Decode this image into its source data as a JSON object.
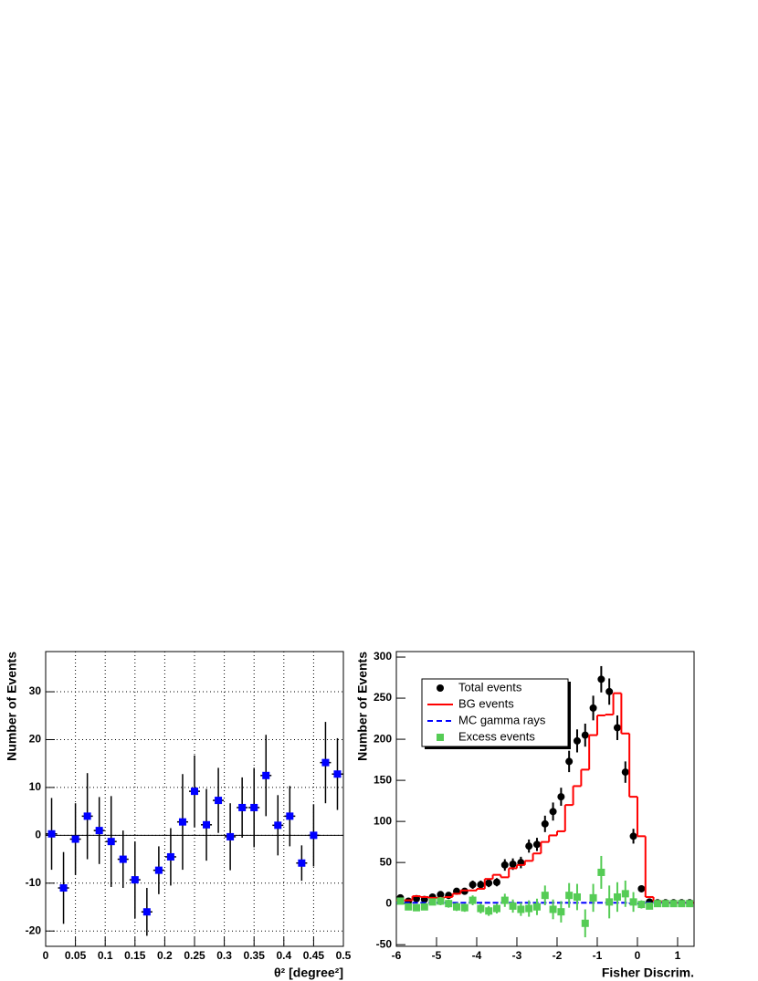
{
  "chart_data": [
    {
      "type": "errorbar",
      "x_label": "θ² [degree²]",
      "y_label": "Number of Events",
      "x": [
        0.01,
        0.03,
        0.05,
        0.07,
        0.09,
        0.11,
        0.13,
        0.15,
        0.17,
        0.19,
        0.21,
        0.23,
        0.25,
        0.27,
        0.29,
        0.31,
        0.33,
        0.35,
        0.37,
        0.39,
        0.41,
        0.43,
        0.45,
        0.47,
        0.49
      ],
      "values": [
        0.3,
        -11,
        -0.8,
        4,
        1,
        -1.3,
        -5,
        -9.3,
        -16,
        -7.3,
        -4.5,
        2.8,
        9.2,
        2.2,
        7.3,
        -0.3,
        5.8,
        5.8,
        12.5,
        2.1,
        4,
        -5.8,
        0,
        15.2,
        12.8
      ],
      "errors": [
        7.5,
        7.5,
        7.5,
        9,
        7,
        9.5,
        6,
        8,
        5,
        5,
        6,
        10,
        7.5,
        7.5,
        6.8,
        7,
        6.3,
        8.3,
        8.5,
        6.3,
        6.3,
        3.7,
        6.5,
        8.5,
        7.5
      ],
      "color": "#0000ff",
      "xlim": [
        0,
        0.5
      ],
      "ylim": [
        -23.2,
        38.4
      ],
      "xticks": [
        0,
        0.05,
        0.1,
        0.15,
        0.2,
        0.25,
        0.3,
        0.35,
        0.4,
        0.45,
        0.5
      ],
      "yticks": [
        -20,
        -10,
        0,
        10,
        20,
        30
      ],
      "grid": true
    },
    {
      "type": "histogram",
      "x_label": "Fisher Discrim.",
      "y_label": "Number of Events",
      "bins": [
        -6,
        -5.8,
        -5.6,
        -5.4,
        -5.2,
        -5,
        -4.8,
        -4.6,
        -4.4,
        -4.2,
        -4,
        -3.8,
        -3.6,
        -3.4,
        -3.2,
        -3,
        -2.8,
        -2.6,
        -2.4,
        -2.2,
        -2,
        -1.8,
        -1.6,
        -1.4,
        -1.2,
        -1,
        -0.8,
        -0.6,
        -0.4,
        -0.2,
        0,
        0.2,
        0.4,
        0.6,
        0.8,
        1,
        1.2,
        1.4
      ],
      "series": [
        {
          "name": "Total events",
          "style": "points",
          "color": "#000000",
          "values": [
            7,
            3,
            6,
            5,
            8,
            11,
            10,
            15,
            15,
            23,
            23,
            25,
            26,
            47,
            48,
            50,
            70,
            72,
            97,
            112,
            130,
            173,
            198,
            205,
            238,
            273,
            258,
            214,
            160,
            82,
            18,
            2,
            1,
            1,
            1,
            1,
            1
          ],
          "errors": [
            3,
            2,
            3,
            3,
            3,
            4,
            4,
            4,
            4,
            5,
            5,
            5,
            5,
            7,
            7,
            7,
            8,
            8,
            10,
            11,
            11,
            13,
            14,
            14,
            15,
            16,
            16,
            15,
            13,
            9,
            4,
            2,
            1,
            1,
            1,
            1,
            1
          ]
        },
        {
          "name": "BG events",
          "style": "step",
          "color": "#ff0000",
          "values": [
            4,
            4,
            9,
            8,
            7,
            7,
            8,
            12,
            16,
            16,
            18,
            30,
            35,
            32,
            43,
            47,
            52,
            61,
            75,
            83,
            88,
            120,
            143,
            163,
            205,
            229,
            230,
            256,
            207,
            130,
            82,
            8,
            3,
            1,
            1,
            1,
            1
          ]
        },
        {
          "name": "MC gamma rays",
          "style": "dashed-step",
          "color": "#0000ff",
          "values": [
            1,
            1,
            1,
            1,
            1,
            1,
            1,
            1,
            1,
            1,
            1,
            1,
            1,
            1,
            1,
            1,
            1,
            1,
            1,
            1,
            1,
            1,
            1,
            1,
            1,
            1,
            1,
            1,
            1,
            0,
            0,
            1,
            1,
            1,
            1,
            1,
            1
          ]
        },
        {
          "name": "Excess events",
          "style": "squares",
          "color": "#55cc55",
          "values": [
            3,
            -4,
            -5,
            -4,
            2,
            3,
            0,
            -4,
            -5,
            4,
            -6,
            -9,
            -6,
            4,
            -3,
            -7,
            -6,
            -4,
            10,
            -7,
            -10,
            10,
            8,
            -24,
            7,
            38,
            2,
            8,
            12,
            2,
            -1,
            -3,
            0,
            0,
            0,
            0,
            0
          ],
          "errors": [
            4,
            4,
            4,
            4,
            4,
            5,
            5,
            5,
            5,
            6,
            6,
            6,
            6,
            8,
            8,
            8,
            10,
            10,
            12,
            12,
            13,
            15,
            16,
            17,
            17,
            20,
            20,
            18,
            16,
            12,
            5,
            3,
            2,
            2,
            2,
            2,
            2
          ]
        }
      ],
      "xlim": [
        -6,
        1.41
      ],
      "ylim": [
        -52,
        306.7
      ],
      "xticks": [
        -6,
        -5,
        -4,
        -3,
        -2,
        -1,
        0,
        1
      ],
      "yticks": [
        -50,
        0,
        50,
        100,
        150,
        200,
        250,
        300
      ],
      "legend": "upper-left"
    }
  ]
}
